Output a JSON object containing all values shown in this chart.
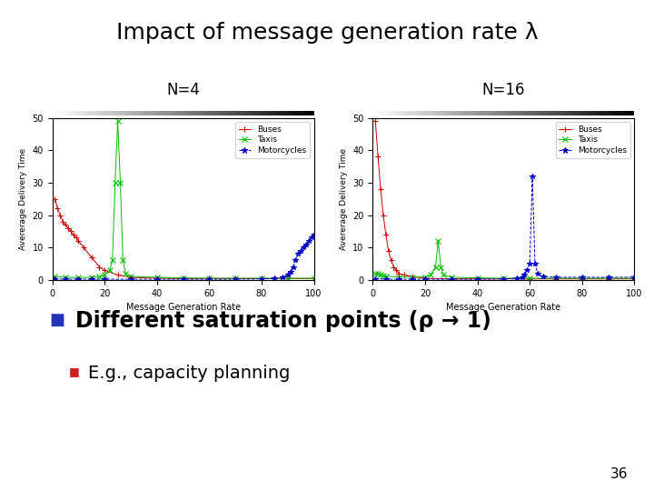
{
  "title": "Impact of message generation rate λ",
  "title_fontsize": 18,
  "background_color": "#ffffff",
  "label_n4": "N=4",
  "label_n16": "N=16",
  "xlabel": "Message Generation Rate",
  "ylabel": "Avererage Delivery Time",
  "ylim": [
    0,
    50
  ],
  "xlim": [
    0,
    100
  ],
  "bullet_color": "#2233bb",
  "subbullet_color": "#cc2222",
  "bullet_text": "Different saturation points (ρ → 1)",
  "subbullet_text": "E.g., capacity planning",
  "bullet_fontsize": 17,
  "subbullet_fontsize": 14,
  "page_number": "36",
  "n4_buses_x": [
    1,
    2,
    3,
    4,
    5,
    6,
    7,
    8,
    9,
    10,
    12,
    15,
    18,
    20,
    25,
    30,
    40,
    50,
    60,
    70,
    80,
    90,
    100
  ],
  "n4_buses_y": [
    25,
    22,
    20,
    18,
    17,
    16,
    15,
    14,
    13,
    12,
    10,
    7,
    4,
    3,
    1.5,
    0.8,
    0.5,
    0.4,
    0.4,
    0.4,
    0.4,
    0.4,
    0.4
  ],
  "n4_taxis_x": [
    1,
    5,
    10,
    15,
    18,
    20,
    22,
    23,
    24,
    25,
    26,
    27,
    28,
    30,
    40,
    50,
    60,
    70,
    80,
    90,
    100
  ],
  "n4_taxis_y": [
    1,
    0.8,
    0.7,
    0.8,
    1.0,
    1.5,
    3,
    6,
    30,
    49,
    30,
    6,
    2,
    1,
    0.8,
    0.6,
    0.5,
    0.5,
    0.5,
    0.5,
    0.5
  ],
  "n4_motos_x": [
    1,
    5,
    10,
    15,
    20,
    30,
    40,
    50,
    60,
    70,
    80,
    85,
    88,
    90,
    91,
    92,
    93,
    94,
    95,
    96,
    97,
    98,
    99,
    100
  ],
  "n4_motos_y": [
    0.3,
    0.2,
    0.2,
    0.2,
    0.2,
    0.2,
    0.2,
    0.2,
    0.2,
    0.2,
    0.3,
    0.5,
    0.8,
    1.5,
    2.5,
    4,
    6,
    8,
    9,
    10,
    11,
    12,
    13,
    14
  ],
  "n16_buses_x": [
    1,
    2,
    3,
    4,
    5,
    6,
    7,
    8,
    9,
    10,
    12,
    15,
    20,
    30,
    40,
    50,
    60,
    70,
    80,
    90,
    100
  ],
  "n16_buses_y": [
    49,
    38,
    28,
    20,
    14,
    9,
    6,
    4,
    3,
    2,
    1.5,
    1,
    0.5,
    0.3,
    0.3,
    0.3,
    0.3,
    0.3,
    0.3,
    0.3,
    0.3
  ],
  "n16_taxis_x": [
    1,
    2,
    3,
    4,
    5,
    10,
    15,
    20,
    22,
    24,
    25,
    26,
    27,
    30,
    40,
    50,
    60,
    70,
    80,
    90,
    100
  ],
  "n16_taxis_y": [
    2,
    1.8,
    1.5,
    1.3,
    1.1,
    0.9,
    0.8,
    0.9,
    1.5,
    4,
    12,
    4,
    1.5,
    0.8,
    0.6,
    0.5,
    0.5,
    0.5,
    0.5,
    0.5,
    0.5
  ],
  "n16_motos_x": [
    1,
    5,
    10,
    15,
    20,
    30,
    40,
    50,
    55,
    57,
    58,
    59,
    60,
    61,
    62,
    63,
    65,
    70,
    80,
    90,
    100
  ],
  "n16_motos_y": [
    0.3,
    0.2,
    0.2,
    0.2,
    0.2,
    0.2,
    0.2,
    0.3,
    0.5,
    0.8,
    1.5,
    3,
    5,
    32,
    5,
    2,
    1,
    0.8,
    0.8,
    0.8,
    0.8
  ]
}
